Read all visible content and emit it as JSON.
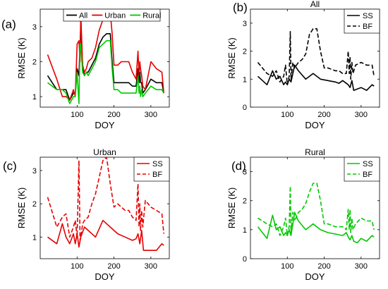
{
  "chart_data": [
    {
      "type": "line",
      "panel_label": "(a)",
      "title": "",
      "xlabel": "DOY",
      "ylabel": "RMSE (K)",
      "xlim": [
        0,
        350
      ],
      "ylim": [
        0.7,
        3.5
      ],
      "xticks": [
        "100",
        "200",
        "300"
      ],
      "yticks": [
        "1",
        "2",
        "3"
      ],
      "legend_position": "top-center",
      "series": [
        {
          "name": "All",
          "color": "#000000",
          "dash": "solid",
          "x": [
            20,
            45,
            60,
            70,
            80,
            90,
            95,
            100,
            105,
            108,
            110,
            115,
            120,
            125,
            130,
            140,
            150,
            160,
            170,
            180,
            190,
            195,
            200,
            210,
            220,
            240,
            250,
            260,
            265,
            268,
            270,
            272,
            275,
            278,
            285,
            300,
            315,
            330,
            335
          ],
          "y": [
            1.6,
            1.2,
            1.2,
            1.2,
            0.9,
            1.1,
            1.1,
            1.8,
            1.6,
            2.5,
            3.0,
            1.9,
            1.6,
            1.7,
            1.7,
            1.9,
            2.1,
            2.5,
            2.7,
            2.8,
            2.8,
            2.0,
            1.4,
            1.4,
            1.4,
            1.4,
            1.3,
            1.3,
            1.8,
            1.4,
            1.7,
            1.4,
            1.4,
            1.1,
            1.2,
            1.5,
            1.4,
            1.4,
            1.1
          ]
        },
        {
          "name": "Urban",
          "color": "#e60000",
          "dash": "solid",
          "x": [
            20,
            45,
            60,
            70,
            80,
            90,
            95,
            100,
            105,
            108,
            110,
            115,
            120,
            125,
            130,
            140,
            150,
            160,
            170,
            180,
            190,
            195,
            200,
            210,
            220,
            240,
            250,
            260,
            265,
            268,
            270,
            272,
            275,
            278,
            285,
            300,
            315,
            330,
            335
          ],
          "y": [
            2.2,
            1.5,
            1.0,
            1.0,
            0.9,
            1.2,
            1.0,
            2.5,
            2.6,
            2.0,
            3.4,
            1.9,
            1.7,
            1.8,
            2.0,
            2.1,
            2.4,
            2.9,
            3.2,
            3.4,
            3.4,
            2.8,
            1.9,
            1.9,
            2.0,
            2.0,
            1.7,
            1.5,
            2.3,
            1.6,
            2.0,
            1.8,
            1.6,
            1.3,
            1.2,
            2.0,
            1.8,
            1.7,
            1.1
          ]
        },
        {
          "name": "Rural",
          "color": "#00c800",
          "dash": "solid",
          "x": [
            20,
            45,
            60,
            70,
            80,
            90,
            95,
            100,
            105,
            108,
            110,
            115,
            120,
            125,
            130,
            140,
            150,
            160,
            170,
            180,
            190,
            195,
            200,
            210,
            220,
            240,
            250,
            260,
            265,
            268,
            270,
            272,
            275,
            278,
            285,
            300,
            315,
            330,
            335
          ],
          "y": [
            1.4,
            1.2,
            1.2,
            1.1,
            0.8,
            1.0,
            1.0,
            1.7,
            0.8,
            2.5,
            2.5,
            1.7,
            1.6,
            1.7,
            1.6,
            1.8,
            2.0,
            2.4,
            2.5,
            2.6,
            2.6,
            1.8,
            1.2,
            1.2,
            1.1,
            1.1,
            1.1,
            1.1,
            1.6,
            1.1,
            1.3,
            1.0,
            1.2,
            1.0,
            1.1,
            1.3,
            1.2,
            1.2,
            1.1
          ]
        }
      ]
    },
    {
      "type": "line",
      "panel_label": "(b)",
      "title": "All",
      "xlabel": "DOY",
      "ylabel": "RMSE (K)",
      "xlim": [
        0,
        350
      ],
      "ylim": [
        0,
        3.5
      ],
      "xticks": [
        "100",
        "200",
        "300"
      ],
      "yticks": [
        "0",
        "1",
        "2",
        "3"
      ],
      "legend_position": "top-right",
      "series": [
        {
          "name": "SS",
          "color": "#000000",
          "dash": "solid",
          "x": [
            20,
            45,
            60,
            70,
            80,
            90,
            95,
            100,
            105,
            110,
            120,
            130,
            150,
            170,
            190,
            210,
            230,
            240,
            250,
            260,
            265,
            270,
            275,
            280,
            290,
            300,
            315,
            330,
            335
          ],
          "y": [
            1.1,
            0.8,
            1.3,
            1.0,
            1.1,
            0.8,
            0.9,
            0.8,
            1.0,
            0.9,
            1.5,
            1.3,
            1.0,
            1.2,
            1.0,
            0.95,
            0.9,
            0.85,
            0.95,
            0.85,
            0.8,
            0.7,
            0.95,
            0.6,
            0.65,
            0.7,
            0.6,
            0.8,
            0.75
          ]
        },
        {
          "name": "BF",
          "color": "#000000",
          "dash": "dashed",
          "x": [
            20,
            45,
            60,
            70,
            80,
            90,
            95,
            100,
            105,
            108,
            110,
            115,
            120,
            130,
            140,
            150,
            160,
            170,
            180,
            190,
            200,
            210,
            230,
            240,
            250,
            260,
            265,
            268,
            270,
            272,
            275,
            278,
            285,
            300,
            315,
            330,
            335
          ],
          "y": [
            1.6,
            1.2,
            1.1,
            1.3,
            0.9,
            1.1,
            1.5,
            0.8,
            1.1,
            2.7,
            1.0,
            1.6,
            1.4,
            1.6,
            1.7,
            1.9,
            2.6,
            2.8,
            2.8,
            2.0,
            1.4,
            1.4,
            1.3,
            1.3,
            1.2,
            1.2,
            2.0,
            1.2,
            1.8,
            1.0,
            1.6,
            1.2,
            1.5,
            1.6,
            1.5,
            1.5,
            1.1
          ]
        }
      ]
    },
    {
      "type": "line",
      "panel_label": "(c)",
      "title": "Urban",
      "xlabel": "DOY",
      "ylabel": "RMSE (K)",
      "xlim": [
        0,
        350
      ],
      "ylim": [
        0.35,
        3.4
      ],
      "xticks": [
        "100",
        "200",
        "300"
      ],
      "yticks": [
        "1",
        "2",
        "3"
      ],
      "legend_position": "top-right",
      "series": [
        {
          "name": "SS",
          "color": "#e60000",
          "dash": "solid",
          "x": [
            20,
            45,
            60,
            70,
            80,
            90,
            95,
            100,
            105,
            110,
            120,
            130,
            150,
            170,
            190,
            210,
            230,
            250,
            260,
            265,
            270,
            275,
            280,
            290,
            300,
            315,
            330,
            335
          ],
          "y": [
            1.0,
            0.8,
            1.4,
            1.0,
            0.8,
            1.1,
            0.8,
            1.1,
            0.7,
            1.0,
            1.3,
            1.2,
            1.0,
            1.5,
            1.3,
            1.1,
            1.0,
            0.9,
            0.95,
            1.1,
            0.8,
            1.2,
            0.6,
            0.6,
            0.6,
            0.6,
            0.8,
            0.75
          ]
        },
        {
          "name": "BF",
          "color": "#e60000",
          "dash": "dashed",
          "x": [
            20,
            45,
            60,
            70,
            80,
            90,
            95,
            100,
            105,
            108,
            110,
            115,
            120,
            130,
            140,
            150,
            160,
            170,
            180,
            190,
            200,
            210,
            230,
            240,
            250,
            260,
            265,
            268,
            270,
            272,
            275,
            278,
            285,
            300,
            315,
            330,
            335
          ],
          "y": [
            2.2,
            1.3,
            1.6,
            1.7,
            1.0,
            1.3,
            1.5,
            1.0,
            3.3,
            0.9,
            1.0,
            1.4,
            1.5,
            1.6,
            2.0,
            2.3,
            2.8,
            3.3,
            3.4,
            2.6,
            1.9,
            2.0,
            1.8,
            1.8,
            1.6,
            1.5,
            2.6,
            1.3,
            2.0,
            1.2,
            1.8,
            1.3,
            2.1,
            1.9,
            1.8,
            1.7,
            1.1
          ]
        }
      ]
    },
    {
      "type": "line",
      "panel_label": "(d)",
      "title": "Rural",
      "xlabel": "DOY",
      "ylabel": "RMSE (K)",
      "xlim": [
        0,
        350
      ],
      "ylim": [
        0,
        3.5
      ],
      "xticks": [
        "100",
        "200",
        "300"
      ],
      "yticks": [
        "0",
        "1",
        "2",
        "3"
      ],
      "legend_position": "top-right",
      "series": [
        {
          "name": "SS",
          "color": "#00c800",
          "dash": "solid",
          "x": [
            20,
            45,
            60,
            70,
            80,
            90,
            95,
            100,
            105,
            110,
            120,
            130,
            150,
            170,
            190,
            210,
            230,
            250,
            260,
            265,
            270,
            275,
            280,
            290,
            300,
            315,
            330,
            335
          ],
          "y": [
            1.1,
            0.7,
            1.5,
            1.0,
            1.1,
            0.8,
            0.9,
            0.8,
            1.0,
            0.8,
            1.6,
            1.3,
            1.0,
            1.2,
            1.0,
            0.9,
            0.85,
            0.8,
            0.9,
            0.75,
            0.65,
            0.8,
            0.6,
            0.55,
            0.7,
            0.6,
            0.8,
            0.75
          ]
        },
        {
          "name": "BF",
          "color": "#00c800",
          "dash": "dashed",
          "x": [
            20,
            45,
            60,
            70,
            80,
            90,
            95,
            100,
            105,
            108,
            110,
            115,
            120,
            130,
            140,
            150,
            160,
            170,
            180,
            190,
            200,
            210,
            230,
            240,
            250,
            260,
            265,
            268,
            270,
            272,
            275,
            278,
            285,
            300,
            315,
            330,
            335
          ],
          "y": [
            1.4,
            1.2,
            1.1,
            1.2,
            0.8,
            1.1,
            1.4,
            0.8,
            1.1,
            2.5,
            0.9,
            1.6,
            1.3,
            1.6,
            1.7,
            1.9,
            2.3,
            2.6,
            2.6,
            2.0,
            1.2,
            1.2,
            1.1,
            1.1,
            1.1,
            1.0,
            1.7,
            1.0,
            1.7,
            0.9,
            1.4,
            1.0,
            1.2,
            1.4,
            1.3,
            1.3,
            1.0
          ]
        }
      ]
    }
  ]
}
